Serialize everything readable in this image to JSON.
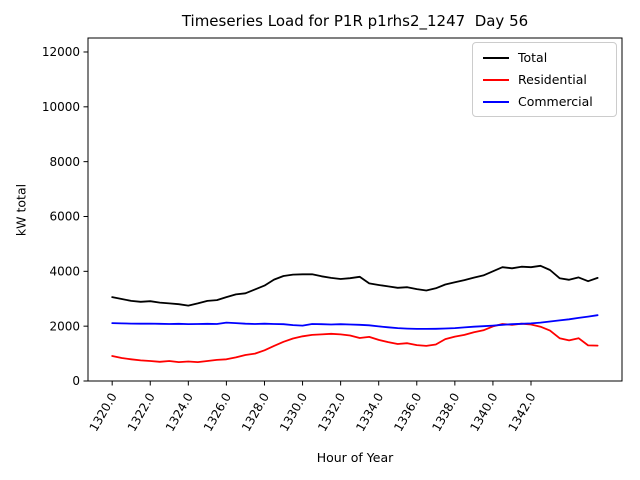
{
  "chart_data": {
    "type": "line",
    "title": "Timeseries Load for P1R p1rhs2_1247  Day 56",
    "xlabel": "Hour of Year",
    "ylabel": "kW total",
    "grid": false,
    "legend_position": "upper right",
    "xlim": [
      1318.73,
      1346.78
    ],
    "ylim": [
      0,
      12510
    ],
    "x_ticks": [
      1320,
      1322,
      1324,
      1326,
      1328,
      1330,
      1332,
      1334,
      1336,
      1338,
      1340,
      1342
    ],
    "x_tick_labels": [
      "1320.0",
      "1322.0",
      "1324.0",
      "1326.0",
      "1328.0",
      "1330.0",
      "1332.0",
      "1334.0",
      "1336.0",
      "1338.0",
      "1340.0",
      "1342.0"
    ],
    "y_ticks": [
      0,
      2000,
      4000,
      6000,
      8000,
      10000,
      12000
    ],
    "y_tick_labels": [
      "0",
      "2000",
      "4000",
      "6000",
      "8000",
      "10000",
      "12000"
    ],
    "x_start": 1320.0,
    "x_step": 0.5,
    "series": [
      {
        "name": "Total",
        "color": "#000000",
        "values": [
          3060,
          2990,
          2920,
          2890,
          2910,
          2860,
          2830,
          2800,
          2750,
          2830,
          2920,
          2950,
          3060,
          3160,
          3200,
          3340,
          3480,
          3700,
          3830,
          3880,
          3890,
          3890,
          3820,
          3760,
          3720,
          3750,
          3800,
          3560,
          3500,
          3450,
          3400,
          3420,
          3350,
          3300,
          3380,
          3520,
          3600,
          3680,
          3770,
          3850,
          4000,
          4150,
          4110,
          4170,
          4150,
          4200,
          4050,
          3750,
          3690,
          3780,
          3640,
          3760
        ]
      },
      {
        "name": "Residential",
        "color": "#ff0000",
        "values": [
          910,
          840,
          790,
          750,
          730,
          700,
          730,
          690,
          710,
          690,
          730,
          770,
          790,
          860,
          950,
          1000,
          1120,
          1280,
          1430,
          1550,
          1630,
          1680,
          1700,
          1720,
          1700,
          1660,
          1570,
          1610,
          1500,
          1420,
          1350,
          1380,
          1310,
          1280,
          1330,
          1530,
          1620,
          1680,
          1780,
          1850,
          1990,
          2080,
          2050,
          2090,
          2060,
          1980,
          1840,
          1560,
          1480,
          1560,
          1300,
          1290
        ]
      },
      {
        "name": "Commercial",
        "color": "#0000ff",
        "values": [
          2110,
          2100,
          2095,
          2090,
          2095,
          2085,
          2080,
          2085,
          2075,
          2080,
          2085,
          2080,
          2130,
          2110,
          2090,
          2080,
          2090,
          2080,
          2070,
          2040,
          2020,
          2080,
          2070,
          2060,
          2070,
          2060,
          2050,
          2030,
          1990,
          1960,
          1930,
          1910,
          1900,
          1900,
          1905,
          1915,
          1930,
          1955,
          1980,
          2000,
          2020,
          2050,
          2070,
          2085,
          2100,
          2130,
          2170,
          2210,
          2250,
          2300,
          2350,
          2400
        ]
      }
    ]
  }
}
